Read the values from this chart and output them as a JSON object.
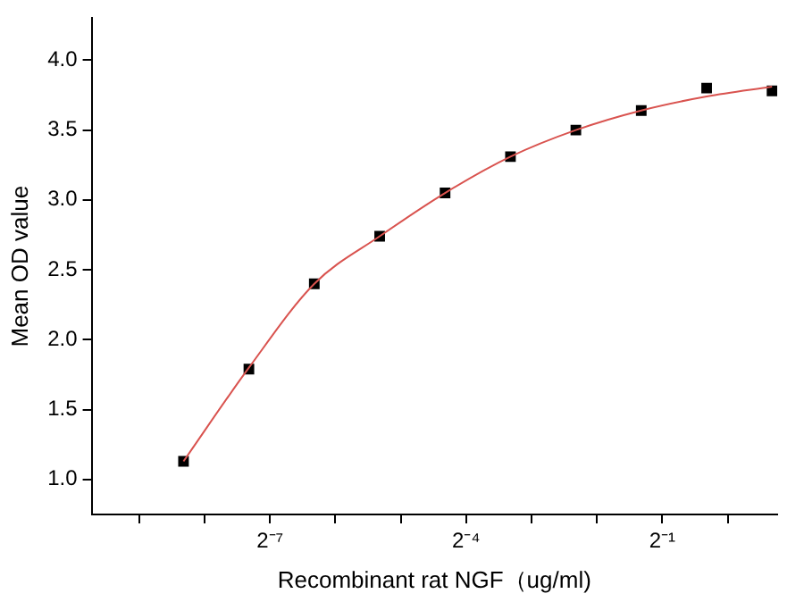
{
  "chart_data": {
    "type": "scatter",
    "xlabel": "Recombinant rat NGF（ug/ml)",
    "ylabel": "Mean OD value",
    "log": "x",
    "grid": false,
    "legend": false,
    "xlim": [
      0.00118,
      1.69
    ],
    "xticks": [
      {
        "value": 0.001953125,
        "label": null
      },
      {
        "value": 0.00390625,
        "label": null
      },
      {
        "value": 0.0078125,
        "label": "2⁻⁷"
      },
      {
        "value": 0.015625,
        "label": null
      },
      {
        "value": 0.03125,
        "label": null
      },
      {
        "value": 0.0625,
        "label": "2⁻⁴"
      },
      {
        "value": 0.125,
        "label": null
      },
      {
        "value": 0.25,
        "label": null
      },
      {
        "value": 0.5,
        "label": "2⁻¹"
      },
      {
        "value": 1,
        "label": null
      }
    ],
    "ylim": [
      0.75,
      4.3
    ],
    "yticks": [
      {
        "value": 1,
        "label": "1.0"
      },
      {
        "value": 1.5,
        "label": "1.5"
      },
      {
        "value": 2,
        "label": "2.0"
      },
      {
        "value": 2.5,
        "label": "2.5"
      },
      {
        "value": 3,
        "label": "3.0"
      },
      {
        "value": 3.5,
        "label": "3.5"
      },
      {
        "value": 4,
        "label": "4.0"
      }
    ],
    "series": [
      {
        "type": "line",
        "x": [
          0.003125,
          0.00625,
          0.0125,
          0.025,
          0.05,
          0.1,
          0.2,
          0.4,
          0.8,
          1.6
        ],
        "values": [
          1.13,
          1.8,
          2.4,
          2.74,
          3.05,
          3.31,
          3.5,
          3.64,
          3.74,
          3.81
        ],
        "color": "#d9534f",
        "marker": "none"
      },
      {
        "type": "scatter",
        "x": [
          0.003125,
          0.00625,
          0.0125,
          0.025,
          0.05,
          0.1,
          0.2,
          0.4,
          0.8,
          1.6
        ],
        "values": [
          1.13,
          1.79,
          2.4,
          2.74,
          3.05,
          3.31,
          3.5,
          3.64,
          3.8,
          3.78
        ],
        "color": "#000000",
        "marker": "square"
      }
    ]
  }
}
